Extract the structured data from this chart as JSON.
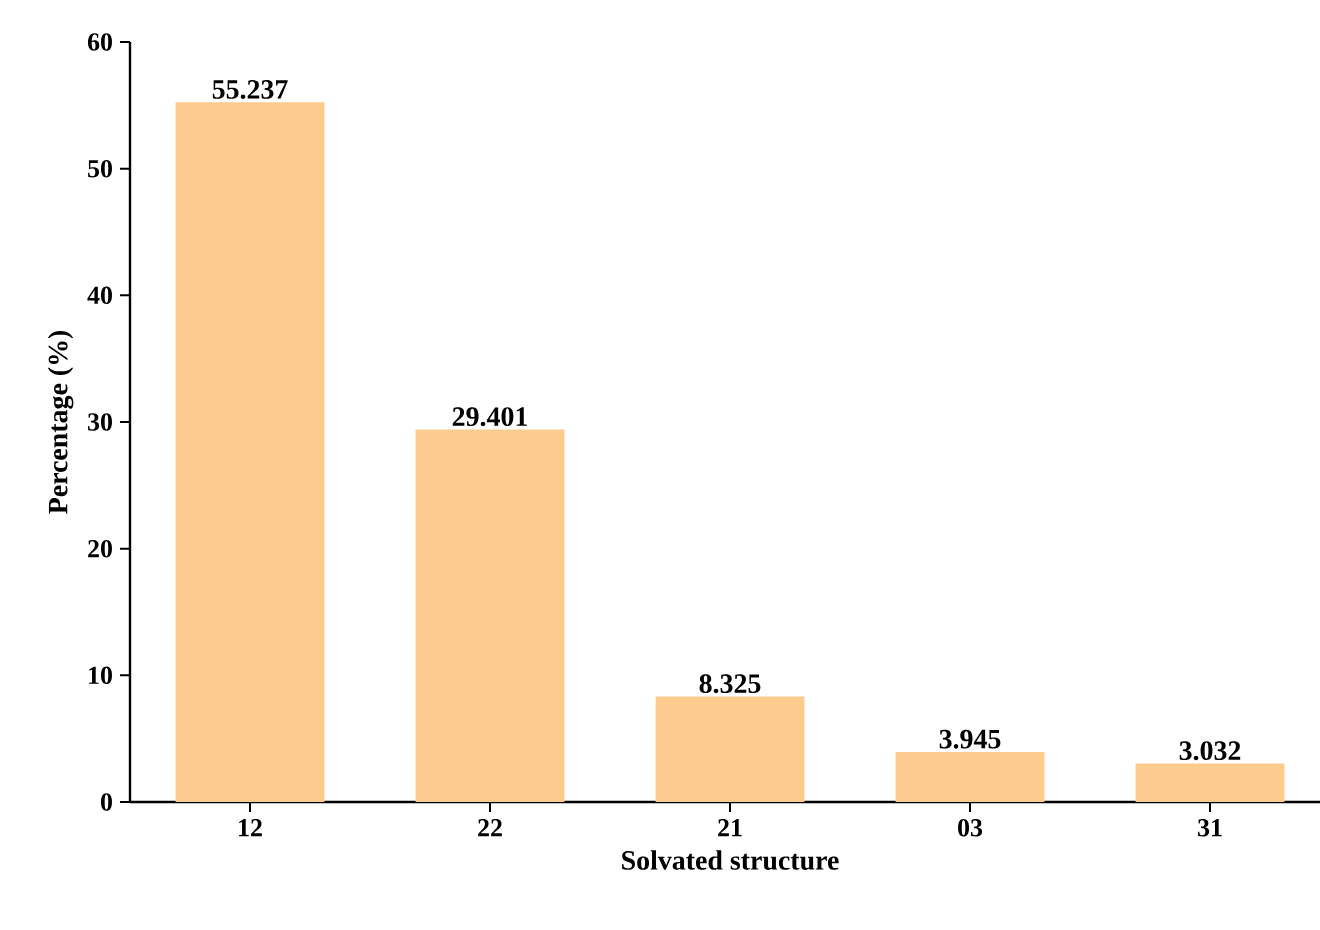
{
  "chart_data": {
    "type": "bar",
    "xlabel": "Solvated structure",
    "ylabel": "Percentage (%)",
    "categories": [
      "12",
      "22",
      "21",
      "03",
      "31"
    ],
    "values": [
      55.237,
      29.401,
      8.325,
      3.945,
      3.032
    ],
    "color": "#fdcb8d",
    "ylim": [
      0,
      60
    ],
    "yticks": [
      0,
      10,
      20,
      30,
      40,
      50,
      60
    ],
    "data_labels": true
  }
}
